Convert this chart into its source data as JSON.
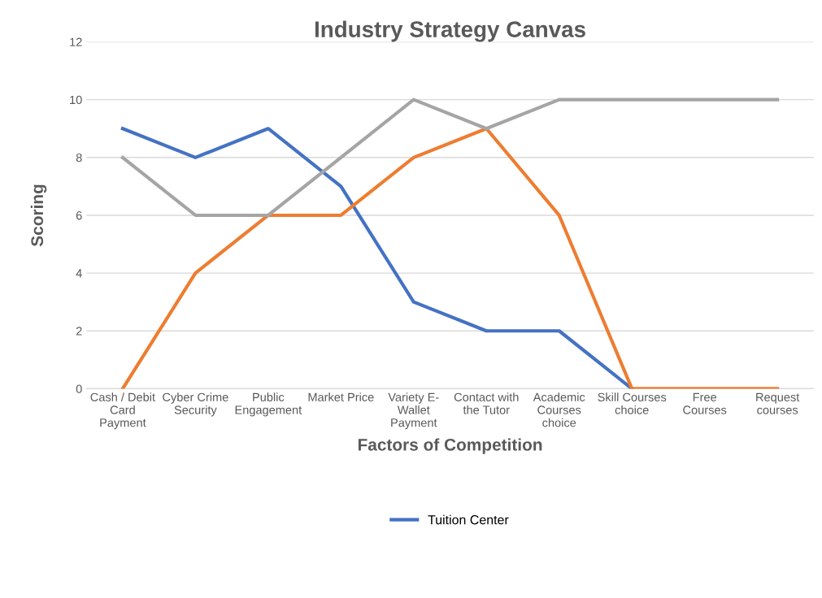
{
  "chart_data": {
    "type": "line",
    "title": "Industry Strategy Canvas",
    "xlabel": "Factors of Competition",
    "ylabel": "Scoring",
    "categories": [
      "Cash / Debit\nCard\nPayment",
      "Cyber Crime\nSecurity",
      "Public\nEngagement",
      "Market Price",
      "Variety E-\nWallet\nPayment",
      "Contact with\nthe Tutor",
      "Academic\nCourses\nchoice",
      "Skill Courses\nchoice",
      "Free\nCourses",
      "Request\ncourses"
    ],
    "series": [
      {
        "name": "Tuition Center",
        "color": "#4472c4",
        "values": [
          9,
          8,
          9,
          7,
          3,
          2,
          2,
          0,
          null,
          null
        ]
      },
      {
        "color": "#ed7d31",
        "values": [
          0,
          4,
          6,
          6,
          8,
          9,
          6,
          0,
          0,
          0
        ]
      },
      {
        "color": "#a5a5a5",
        "values": [
          8,
          6,
          6,
          8,
          10,
          9,
          10,
          10,
          10,
          10
        ]
      }
    ],
    "ylim": [
      0,
      12
    ],
    "yticks": [
      0,
      2,
      4,
      6,
      8,
      10,
      12
    ],
    "grid": "y",
    "legend": "bottom",
    "marker": "none",
    "line_style": "solid"
  }
}
